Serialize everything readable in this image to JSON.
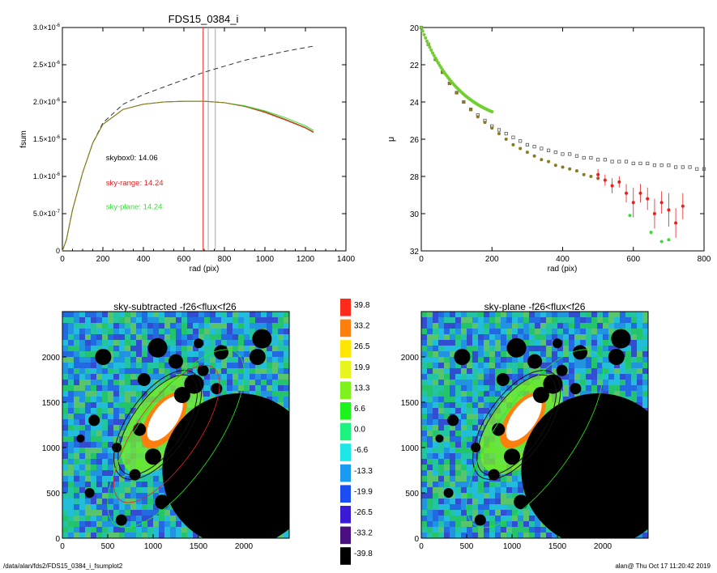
{
  "chart_data": [
    {
      "type": "line",
      "title": "FDS15_0384_i",
      "xlabel": "rad (pix)",
      "ylabel": "fsum",
      "xlim": [
        0,
        1400
      ],
      "ylim": [
        0,
        3e-06
      ],
      "x_ticks": [
        "0",
        "200",
        "400",
        "600",
        "800",
        "1000",
        "1200",
        "1400"
      ],
      "y_ticks": [
        {
          "mant": "0",
          "exp": ""
        },
        {
          "mant": "5.0×10",
          "exp": "-7"
        },
        {
          "mant": "1.0×10",
          "exp": "-6"
        },
        {
          "mant": "1.5×10",
          "exp": "-6"
        },
        {
          "mant": "2.0×10",
          "exp": "-6"
        },
        {
          "mant": "2.5×10",
          "exp": "-6"
        },
        {
          "mant": "3.0×10",
          "exp": "-6"
        }
      ],
      "vlines": [
        {
          "x": 695,
          "color": "#e8201f"
        },
        {
          "x": 720,
          "color": "#b0a0a0"
        },
        {
          "x": 755,
          "color": "#b0a0a0"
        }
      ],
      "series": [
        {
          "color": "#333333",
          "dash": true,
          "x": [
            0,
            20,
            50,
            100,
            150,
            200,
            300,
            400,
            500,
            600,
            700,
            800,
            900,
            1000,
            1100,
            1200,
            1240
          ],
          "y": [
            0,
            1.5e-07,
            5.5e-07,
            1.05e-06,
            1.45e-06,
            1.72e-06,
            1.97e-06,
            2.1e-06,
            2.2e-06,
            2.3e-06,
            2.4e-06,
            2.48e-06,
            2.56e-06,
            2.62e-06,
            2.68e-06,
            2.73e-06,
            2.75e-06
          ]
        },
        {
          "color": "#e8201f",
          "x": [
            0,
            20,
            50,
            100,
            150,
            200,
            300,
            400,
            500,
            600,
            700,
            800,
            900,
            1000,
            1100,
            1200,
            1240
          ],
          "y": [
            0,
            1.5e-07,
            5.5e-07,
            1.05e-06,
            1.45e-06,
            1.7e-06,
            1.9e-06,
            1.97e-06,
            2e-06,
            2.01e-06,
            2.01e-06,
            1.99e-06,
            1.94e-06,
            1.86e-06,
            1.76e-06,
            1.65e-06,
            1.59e-06
          ]
        },
        {
          "color": "#3ddc3d",
          "x": [
            0,
            20,
            50,
            100,
            150,
            200,
            300,
            400,
            500,
            600,
            700,
            800,
            900,
            1000,
            1100,
            1200,
            1240
          ],
          "y": [
            0,
            1.5e-07,
            5.5e-07,
            1.05e-06,
            1.45e-06,
            1.7e-06,
            1.9e-06,
            1.97e-06,
            2e-06,
            2.01e-06,
            2.01e-06,
            1.99e-06,
            1.95e-06,
            1.88e-06,
            1.79e-06,
            1.68e-06,
            1.62e-06
          ]
        },
        {
          "color": "#8a7a1e",
          "x": [
            0,
            20,
            50,
            100,
            150,
            200,
            300,
            400,
            500,
            600,
            700,
            800,
            900,
            1000,
            1100,
            1200,
            1240
          ],
          "y": [
            0,
            1.5e-07,
            5.5e-07,
            1.05e-06,
            1.45e-06,
            1.7e-06,
            1.9e-06,
            1.97e-06,
            2e-06,
            2.01e-06,
            2.01e-06,
            1.99e-06,
            1.94e-06,
            1.87e-06,
            1.77e-06,
            1.66e-06,
            1.6e-06
          ]
        }
      ],
      "annotations": [
        {
          "text": "skybox0: 14.06",
          "color": "#000000",
          "x": 215,
          "y": 1.22e-06
        },
        {
          "text": "sky-range: 14.24",
          "color": "#e8201f",
          "x": 215,
          "y": 8.8e-07
        },
        {
          "text": "sky-plane: 14.24",
          "color": "#3ddc3d",
          "x": 215,
          "y": 5.6e-07
        }
      ]
    },
    {
      "type": "scatter",
      "xlabel": "rad (pix)",
      "ylabel": "μ",
      "xlim": [
        0,
        800
      ],
      "ylim": [
        32,
        20
      ],
      "x_ticks": [
        "0",
        "200",
        "400",
        "600",
        "800"
      ],
      "y_ticks": [
        "20",
        "22",
        "24",
        "26",
        "28",
        "30",
        "32"
      ],
      "series": [
        {
          "marker": "square-open",
          "color": "#555555",
          "x": [
            0,
            20,
            40,
            60,
            80,
            100,
            120,
            140,
            160,
            180,
            200,
            220,
            240,
            260,
            280,
            300,
            320,
            340,
            360,
            380,
            400,
            420,
            440,
            460,
            480,
            500,
            520,
            540,
            560,
            580,
            600,
            620,
            640,
            660,
            680,
            700,
            720,
            740,
            760,
            780,
            800
          ],
          "y": [
            20.0,
            20.9,
            21.7,
            22.4,
            23.0,
            23.5,
            24.0,
            24.4,
            24.7,
            25.0,
            25.3,
            25.5,
            25.7,
            25.9,
            26.1,
            26.3,
            26.4,
            26.5,
            26.6,
            26.7,
            26.8,
            26.8,
            26.9,
            27.0,
            27.0,
            27.1,
            27.1,
            27.2,
            27.2,
            27.2,
            27.3,
            27.3,
            27.3,
            27.4,
            27.4,
            27.4,
            27.5,
            27.5,
            27.5,
            27.6,
            27.6
          ]
        },
        {
          "marker": "dot",
          "color": "#8a7a1e",
          "x": [
            0,
            20,
            40,
            60,
            80,
            100,
            120,
            140,
            160,
            180,
            200,
            220,
            240,
            260,
            280,
            300,
            320,
            340,
            360,
            380,
            400,
            420,
            440,
            460,
            480,
            500
          ],
          "y": [
            20.0,
            20.9,
            21.7,
            22.4,
            23.0,
            23.5,
            24.0,
            24.4,
            24.8,
            25.1,
            25.4,
            25.7,
            26.0,
            26.3,
            26.5,
            26.7,
            26.9,
            27.1,
            27.2,
            27.4,
            27.5,
            27.6,
            27.7,
            27.9,
            28.0,
            28.1
          ]
        },
        {
          "marker": "dot-err",
          "color": "#e8201f",
          "x": [
            500,
            520,
            540,
            560,
            580,
            600,
            620,
            640,
            660,
            680,
            700,
            720,
            740
          ],
          "y": [
            27.9,
            28.2,
            28.5,
            28.3,
            28.9,
            29.4,
            28.9,
            29.2,
            30.0,
            29.4,
            29.8,
            30.5,
            29.6
          ],
          "err": [
            0.3,
            0.3,
            0.4,
            0.3,
            0.5,
            0.8,
            0.5,
            0.6,
            0.8,
            0.6,
            0.9,
            0.8,
            0.7
          ]
        },
        {
          "marker": "dot",
          "color": "#3ddc3d",
          "x": [
            590,
            650,
            680,
            700
          ],
          "y": [
            30.1,
            31.0,
            31.5,
            31.4
          ]
        }
      ]
    },
    {
      "type": "heatmap",
      "title": "sky-subtracted -f26<flux<f26",
      "x_ticks": [
        "0",
        "500",
        "1000",
        "1500",
        "2000"
      ],
      "y_ticks": [
        "0",
        "500",
        "1000",
        "1500",
        "2000"
      ],
      "xlim": [
        0,
        2500
      ],
      "ylim": [
        0,
        2500
      ]
    },
    {
      "type": "heatmap",
      "title": "sky-plane -f26<flux<f26",
      "x_ticks": [
        "0",
        "500",
        "1000",
        "1500",
        "2000"
      ],
      "y_ticks": [
        "0",
        "500",
        "1000",
        "1500",
        "2000"
      ],
      "xlim": [
        0,
        2500
      ],
      "ylim": [
        0,
        2500
      ]
    }
  ],
  "colorbar": {
    "labels": [
      "39.8",
      "33.2",
      "26.5",
      "19.9",
      "13.3",
      "6.6",
      "0.0",
      "-6.6",
      "-13.3",
      "-19.9",
      "-26.5",
      "-33.2",
      "-39.8"
    ],
    "colors": [
      "#ff2a1a",
      "#ff7f0e",
      "#ffe600",
      "#e8f51c",
      "#7df21c",
      "#1ef21c",
      "#1cf27e",
      "#1ce6e6",
      "#1a9bf2",
      "#1a4ef2",
      "#3b1ad6",
      "#4a0f80",
      "#000000"
    ]
  },
  "footer": {
    "left": "/data/alan/fds2/FDS15_0384_i_fsumplot2",
    "right": "alan@  Thu Oct 17 11:20:42 2019"
  }
}
